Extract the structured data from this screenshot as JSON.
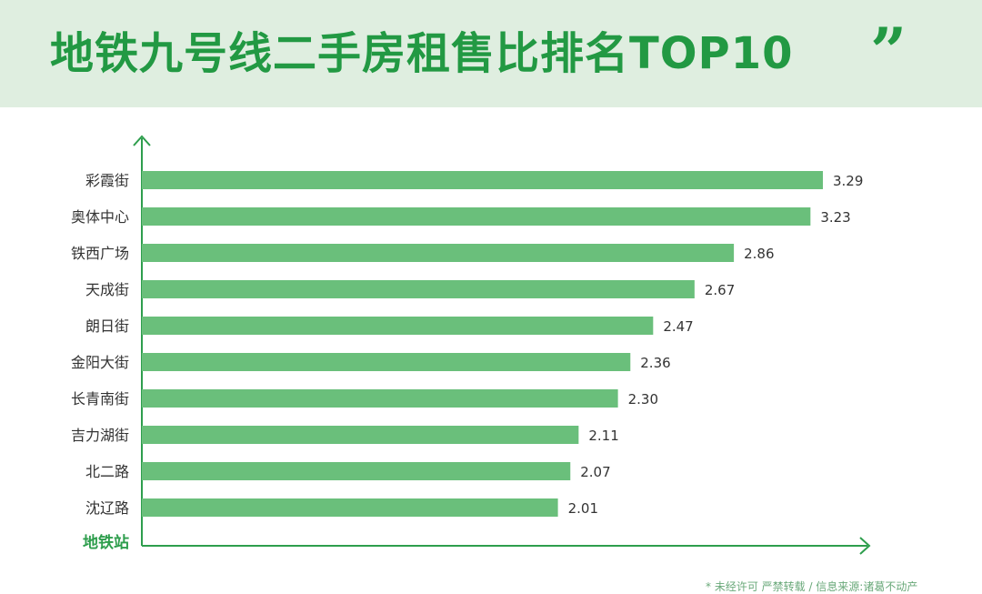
{
  "header": {
    "title": "地铁九号线二手房租售比排名TOP10",
    "quote_glyph": "”"
  },
  "footnote": "* 未经许可 严禁转载 / 信息来源:诸葛不动产",
  "colors": {
    "bar": "#6abf7b",
    "axis": "#2e9e4d",
    "title": "#229943",
    "header_bg": "#dfeee0",
    "label_text": "#333333"
  },
  "chart_data": {
    "type": "bar",
    "orientation": "horizontal",
    "title": "地铁九号线二手房租售比排名TOP10",
    "ylabel": "地铁站",
    "xlabel": "",
    "categories": [
      "彩霞街",
      "奥体中心",
      "铁西广场",
      "天成街",
      "朗日街",
      "金阳大街",
      "长青南街",
      "吉力湖街",
      "北二路",
      "沈辽路"
    ],
    "values": [
      3.29,
      3.23,
      2.86,
      2.67,
      2.47,
      2.36,
      2.3,
      2.11,
      2.07,
      2.01
    ],
    "value_labels": [
      "3.29",
      "3.23",
      "2.86",
      "2.67",
      "2.47",
      "2.36",
      "2.30",
      "2.11",
      "2.07",
      "2.01"
    ],
    "xlim": [
      0,
      3.5
    ],
    "grid": false,
    "data_labels": true
  }
}
